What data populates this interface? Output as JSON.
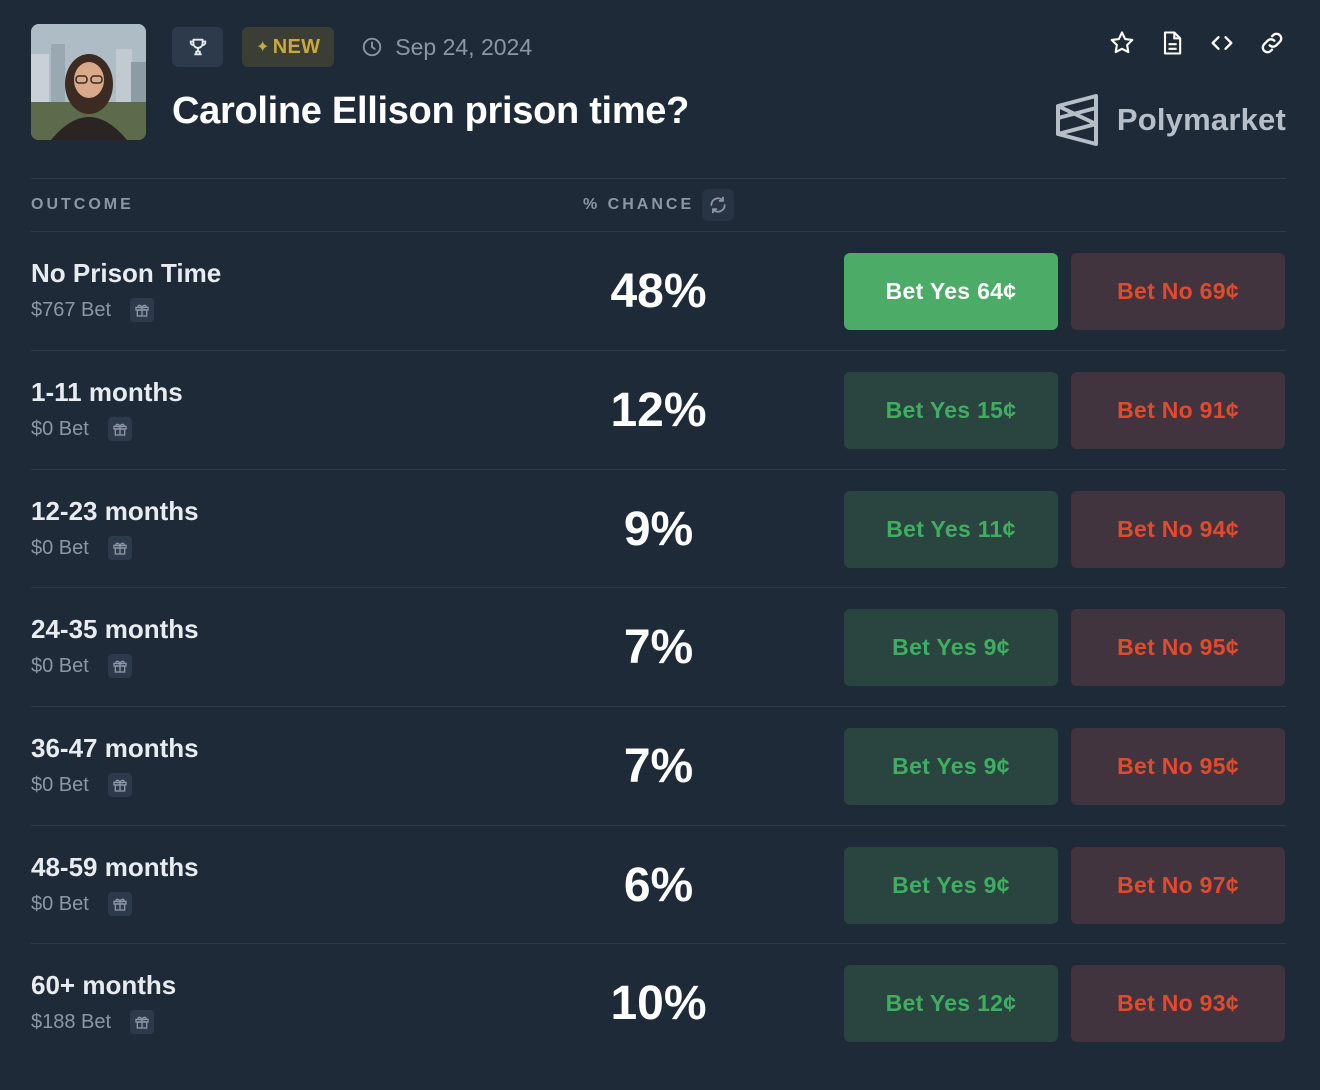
{
  "header": {
    "new_badge": "NEW",
    "date": "Sep 24, 2024",
    "title": "Caroline Ellison prison time?",
    "brand": "Polymarket"
  },
  "table": {
    "col_outcome": "OUTCOME",
    "col_chance": "% CHANCE",
    "rows": [
      {
        "name": "No Prison Time",
        "bet": "$767 Bet",
        "chance": "48%",
        "yes": "Bet Yes 64¢",
        "no": "Bet No 69¢"
      },
      {
        "name": "1-11 months",
        "bet": "$0 Bet",
        "chance": "12%",
        "yes": "Bet Yes 15¢",
        "no": "Bet No 91¢"
      },
      {
        "name": "12-23 months",
        "bet": "$0 Bet",
        "chance": "9%",
        "yes": "Bet Yes 11¢",
        "no": "Bet No 94¢"
      },
      {
        "name": "24-35 months",
        "bet": "$0 Bet",
        "chance": "7%",
        "yes": "Bet Yes 9¢",
        "no": "Bet No 95¢"
      },
      {
        "name": "36-47 months",
        "bet": "$0 Bet",
        "chance": "7%",
        "yes": "Bet Yes 9¢",
        "no": "Bet No 95¢"
      },
      {
        "name": "48-59 months",
        "bet": "$0 Bet",
        "chance": "6%",
        "yes": "Bet Yes 9¢",
        "no": "Bet No 97¢"
      },
      {
        "name": "60+ months",
        "bet": "$188 Bet",
        "chance": "10%",
        "yes": "Bet Yes 12¢",
        "no": "Bet No 93¢"
      }
    ]
  },
  "colors": {
    "background": "#1f2a38",
    "yes_active": "#4cab67",
    "yes_text": "#3fae60",
    "no_text": "#e24a2d",
    "new_badge": "#c9a93f"
  },
  "icons": [
    "trophy-icon",
    "clock-icon",
    "star-icon",
    "document-icon",
    "code-icon",
    "link-icon",
    "polymarket-logo-icon",
    "refresh-icon",
    "gift-icon"
  ]
}
